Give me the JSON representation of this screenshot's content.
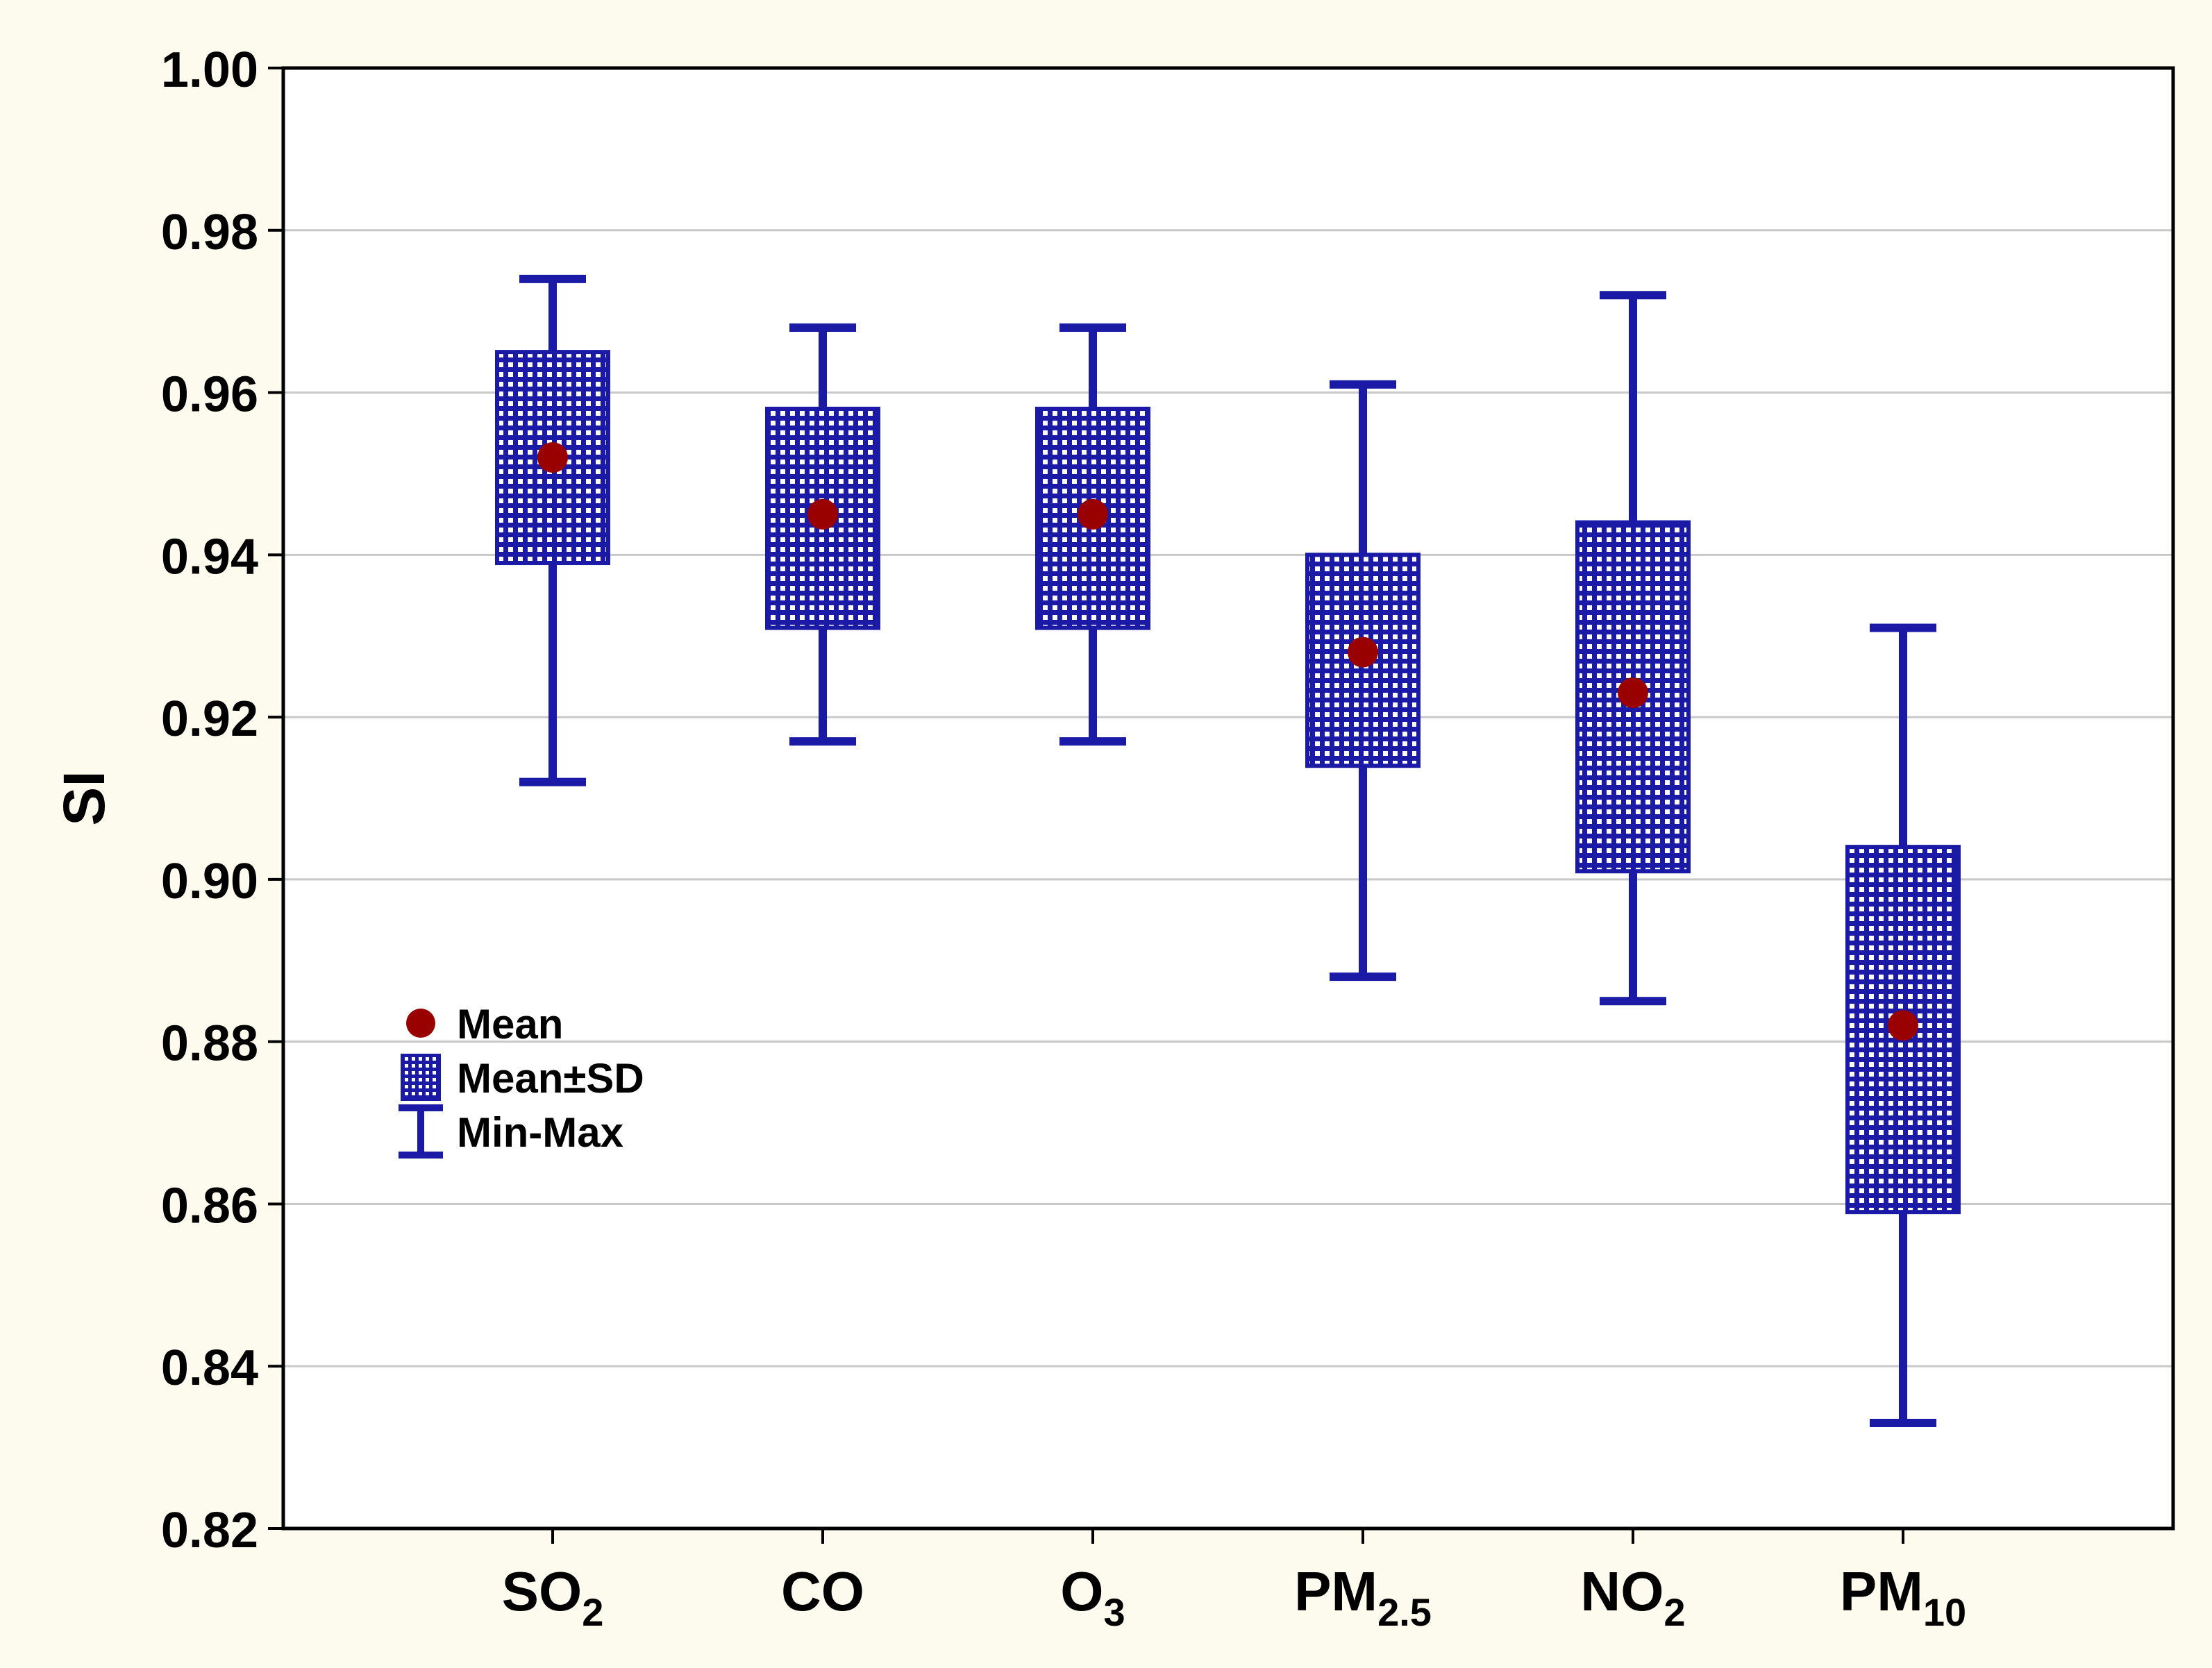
{
  "chart_data": {
    "type": "box",
    "title": "",
    "xlabel": "",
    "ylabel": "SI",
    "ylim": [
      0.82,
      1.0
    ],
    "yticks": [
      0.82,
      0.84,
      0.86,
      0.88,
      0.9,
      0.92,
      0.94,
      0.96,
      0.98,
      1.0
    ],
    "ytick_labels": [
      "0.82",
      "0.84",
      "0.86",
      "0.88",
      "0.90",
      "0.92",
      "0.94",
      "0.96",
      "0.98",
      "1.00"
    ],
    "grid": true,
    "legend_position": "left, mid-lower",
    "categories": [
      {
        "base": "SO",
        "sub": "2"
      },
      {
        "base": "CO",
        "sub": ""
      },
      {
        "base": "O",
        "sub": "3"
      },
      {
        "base": "PM",
        "sub": "2.5"
      },
      {
        "base": "NO",
        "sub": "2"
      },
      {
        "base": "PM",
        "sub": "10"
      }
    ],
    "series": [
      {
        "mean": 0.952,
        "sd_low": 0.939,
        "sd_high": 0.965,
        "min": 0.912,
        "max": 0.974
      },
      {
        "mean": 0.945,
        "sd_low": 0.931,
        "sd_high": 0.958,
        "min": 0.917,
        "max": 0.968
      },
      {
        "mean": 0.945,
        "sd_low": 0.931,
        "sd_high": 0.958,
        "min": 0.917,
        "max": 0.968
      },
      {
        "mean": 0.928,
        "sd_low": 0.914,
        "sd_high": 0.94,
        "min": 0.888,
        "max": 0.961
      },
      {
        "mean": 0.923,
        "sd_low": 0.901,
        "sd_high": 0.944,
        "min": 0.885,
        "max": 0.972
      },
      {
        "mean": 0.882,
        "sd_low": 0.859,
        "sd_high": 0.904,
        "min": 0.833,
        "max": 0.931
      }
    ],
    "legend": [
      {
        "key": "mean",
        "label": "Mean"
      },
      {
        "key": "sd",
        "label": "Mean±SD"
      },
      {
        "key": "minmax",
        "label": "Min-Max"
      }
    ],
    "colors": {
      "box": "#1a1aa6",
      "box_dots": "#ffffff",
      "whisker": "#1a1aa6",
      "mean": "#990000",
      "grid": "#c8c8c8",
      "plot_bg": "#ffffff",
      "page_bg": "#fdfaee"
    }
  }
}
